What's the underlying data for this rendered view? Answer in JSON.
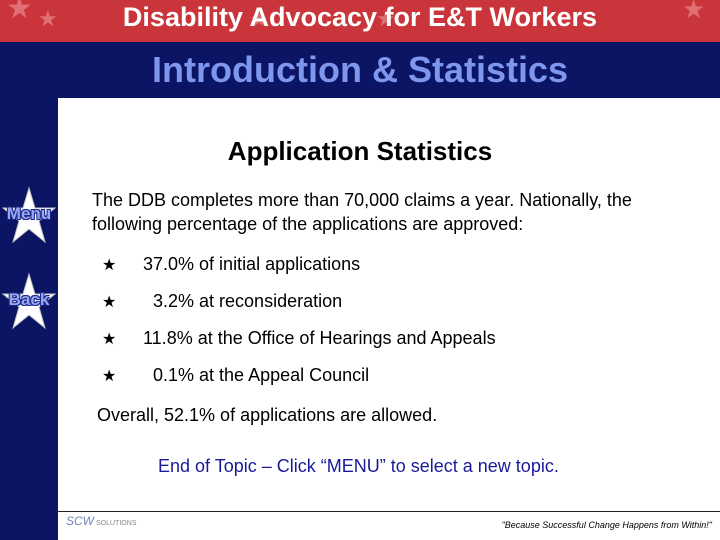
{
  "header": {
    "title": "Disability Advocacy for E&T Workers",
    "subtitle": "Introduction & Statistics"
  },
  "nav": {
    "menu_label": "Menu",
    "back_label": "Back"
  },
  "content": {
    "heading": "Application Statistics",
    "intro": "The DDB completes more than 70,000 claims a year.  Nationally, the following percentage of the applications are approved:",
    "bullets": [
      " 37.0% of initial applications",
      "   3.2% at reconsideration",
      " 11.8% at the Office of Hearings and Appeals",
      "   0.1% at the Appeal Council"
    ],
    "summary": "Overall, 52.1% of applications are allowed.",
    "end_topic": "End of Topic – Click “MENU” to select a new topic."
  },
  "footer": {
    "logo_text": "SCW",
    "logo_subtext": "SOLUTIONS",
    "quote": "\"Because Successful Change Happens from Within!\""
  },
  "colors": {
    "banner_red": "#c9353a",
    "navy": "#0b1563",
    "subtitle_blue": "#7f96ef",
    "link_blue": "#1a1a99"
  }
}
